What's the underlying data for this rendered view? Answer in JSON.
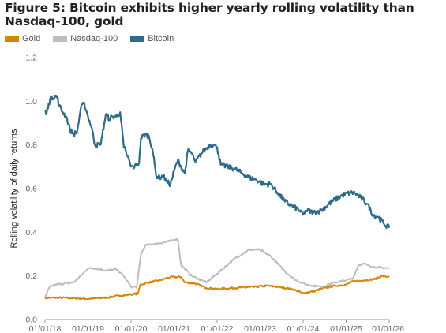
{
  "chart_data": {
    "type": "line",
    "title": "Figure 5: Bitcoin exhibits higher yearly rolling volatility than Nasdaq-100, gold",
    "ylabel": "Rolling volatility of daily returns",
    "xlabel": "",
    "ylim": [
      0,
      1.2
    ],
    "xlim": [
      "2018-01-01",
      "2026-01-01"
    ],
    "yticks": [
      "0.0",
      "0.2",
      "0.4",
      "0.6",
      "0.8",
      "1.0",
      "1.2"
    ],
    "xticks": [
      "01/01/18",
      "01/01/19",
      "01/01/20",
      "01/01/21",
      "01/01/22",
      "01/01/23",
      "01/01/24",
      "01/01/25",
      "01/01/26"
    ],
    "grid": false,
    "legend_position": "top-left",
    "series": [
      {
        "name": "Gold",
        "color": "#d4860b",
        "points": [
          [
            "2018-01-01",
            0.1
          ],
          [
            "2018-06-01",
            0.1
          ],
          [
            "2019-01-01",
            0.095
          ],
          [
            "2019-06-01",
            0.1
          ],
          [
            "2019-10-01",
            0.11
          ],
          [
            "2020-01-01",
            0.115
          ],
          [
            "2020-03-01",
            0.12
          ],
          [
            "2020-03-20",
            0.16
          ],
          [
            "2020-06-01",
            0.17
          ],
          [
            "2020-09-01",
            0.18
          ],
          [
            "2020-12-01",
            0.195
          ],
          [
            "2021-03-01",
            0.195
          ],
          [
            "2021-04-01",
            0.17
          ],
          [
            "2021-07-01",
            0.165
          ],
          [
            "2021-10-01",
            0.145
          ],
          [
            "2022-01-01",
            0.14
          ],
          [
            "2022-06-01",
            0.145
          ],
          [
            "2022-12-01",
            0.15
          ],
          [
            "2023-03-01",
            0.155
          ],
          [
            "2023-06-01",
            0.15
          ],
          [
            "2023-10-01",
            0.14
          ],
          [
            "2024-01-01",
            0.12
          ],
          [
            "2024-04-01",
            0.13
          ],
          [
            "2024-07-01",
            0.145
          ],
          [
            "2024-10-01",
            0.155
          ],
          [
            "2025-01-01",
            0.16
          ],
          [
            "2025-03-01",
            0.175
          ],
          [
            "2025-06-01",
            0.18
          ],
          [
            "2025-09-01",
            0.185
          ],
          [
            "2025-11-01",
            0.2
          ],
          [
            "2026-01-01",
            0.195
          ]
        ]
      },
      {
        "name": "Nasdaq-100",
        "color": "#bdbdbd",
        "points": [
          [
            "2018-01-01",
            0.1
          ],
          [
            "2018-02-10",
            0.15
          ],
          [
            "2018-04-01",
            0.16
          ],
          [
            "2018-09-01",
            0.17
          ],
          [
            "2018-11-01",
            0.2
          ],
          [
            "2019-01-01",
            0.235
          ],
          [
            "2019-03-01",
            0.235
          ],
          [
            "2019-06-01",
            0.225
          ],
          [
            "2019-09-01",
            0.23
          ],
          [
            "2019-11-01",
            0.2
          ],
          [
            "2020-01-01",
            0.15
          ],
          [
            "2020-02-20",
            0.15
          ],
          [
            "2020-03-25",
            0.3
          ],
          [
            "2020-05-01",
            0.34
          ],
          [
            "2020-09-01",
            0.35
          ],
          [
            "2020-12-01",
            0.36
          ],
          [
            "2021-02-01",
            0.37
          ],
          [
            "2021-03-01",
            0.25
          ],
          [
            "2021-06-01",
            0.2
          ],
          [
            "2021-10-01",
            0.17
          ],
          [
            "2022-01-01",
            0.21
          ],
          [
            "2022-06-01",
            0.28
          ],
          [
            "2022-10-01",
            0.32
          ],
          [
            "2023-01-01",
            0.32
          ],
          [
            "2023-04-01",
            0.29
          ],
          [
            "2023-08-01",
            0.22
          ],
          [
            "2023-11-01",
            0.18
          ],
          [
            "2024-02-01",
            0.16
          ],
          [
            "2024-06-01",
            0.15
          ],
          [
            "2024-10-01",
            0.17
          ],
          [
            "2025-01-01",
            0.18
          ],
          [
            "2025-03-01",
            0.19
          ],
          [
            "2025-04-15",
            0.25
          ],
          [
            "2025-06-01",
            0.255
          ],
          [
            "2025-09-01",
            0.24
          ],
          [
            "2026-01-01",
            0.235
          ]
        ]
      },
      {
        "name": "Bitcoin",
        "color": "#2e6b87",
        "points": [
          [
            "2018-01-01",
            0.96
          ],
          [
            "2018-01-10",
            0.94
          ],
          [
            "2018-02-01",
            0.99
          ],
          [
            "2018-03-01",
            1.02
          ],
          [
            "2018-04-15",
            1.02
          ],
          [
            "2018-05-01",
            0.98
          ],
          [
            "2018-06-01",
            0.95
          ],
          [
            "2018-07-01",
            0.93
          ],
          [
            "2018-08-01",
            0.87
          ],
          [
            "2018-09-01",
            0.85
          ],
          [
            "2018-10-01",
            0.86
          ],
          [
            "2018-11-01",
            0.97
          ],
          [
            "2018-12-01",
            0.99
          ],
          [
            "2019-01-01",
            0.93
          ],
          [
            "2019-02-01",
            0.88
          ],
          [
            "2019-03-01",
            0.8
          ],
          [
            "2019-04-15",
            0.8
          ],
          [
            "2019-05-01",
            0.84
          ],
          [
            "2019-06-01",
            0.94
          ],
          [
            "2019-07-01",
            0.92
          ],
          [
            "2019-08-01",
            0.93
          ],
          [
            "2019-09-01",
            0.93
          ],
          [
            "2019-10-01",
            0.95
          ],
          [
            "2019-11-01",
            0.79
          ],
          [
            "2019-12-01",
            0.75
          ],
          [
            "2020-01-01",
            0.7
          ],
          [
            "2020-02-01",
            0.7
          ],
          [
            "2020-03-10",
            0.72
          ],
          [
            "2020-03-25",
            0.83
          ],
          [
            "2020-05-01",
            0.85
          ],
          [
            "2020-06-01",
            0.84
          ],
          [
            "2020-07-01",
            0.78
          ],
          [
            "2020-08-01",
            0.66
          ],
          [
            "2020-09-01",
            0.65
          ],
          [
            "2020-10-01",
            0.66
          ],
          [
            "2020-11-01",
            0.63
          ],
          [
            "2020-12-01",
            0.62
          ],
          [
            "2021-01-01",
            0.68
          ],
          [
            "2021-02-01",
            0.73
          ],
          [
            "2021-03-01",
            0.7
          ],
          [
            "2021-04-01",
            0.67
          ],
          [
            "2021-05-01",
            0.78
          ],
          [
            "2021-06-01",
            0.76
          ],
          [
            "2021-07-01",
            0.72
          ],
          [
            "2021-09-01",
            0.77
          ],
          [
            "2021-11-01",
            0.8
          ],
          [
            "2021-12-01",
            0.8
          ],
          [
            "2022-01-01",
            0.79
          ],
          [
            "2022-02-01",
            0.71
          ],
          [
            "2022-04-01",
            0.7
          ],
          [
            "2022-06-01",
            0.69
          ],
          [
            "2022-08-01",
            0.67
          ],
          [
            "2022-10-01",
            0.65
          ],
          [
            "2022-12-01",
            0.64
          ],
          [
            "2023-02-01",
            0.62
          ],
          [
            "2023-04-01",
            0.62
          ],
          [
            "2023-06-01",
            0.58
          ],
          [
            "2023-08-01",
            0.54
          ],
          [
            "2023-10-01",
            0.52
          ],
          [
            "2023-12-01",
            0.5
          ],
          [
            "2024-01-01",
            0.48
          ],
          [
            "2024-02-01",
            0.5
          ],
          [
            "2024-04-01",
            0.49
          ],
          [
            "2024-06-01",
            0.5
          ],
          [
            "2024-09-01",
            0.54
          ],
          [
            "2024-12-01",
            0.57
          ],
          [
            "2025-02-01",
            0.58
          ],
          [
            "2025-03-15",
            0.58
          ],
          [
            "2025-05-01",
            0.56
          ],
          [
            "2025-07-01",
            0.53
          ],
          [
            "2025-08-15",
            0.48
          ],
          [
            "2025-10-01",
            0.47
          ],
          [
            "2025-11-15",
            0.44
          ],
          [
            "2026-01-01",
            0.42
          ]
        ]
      }
    ]
  }
}
